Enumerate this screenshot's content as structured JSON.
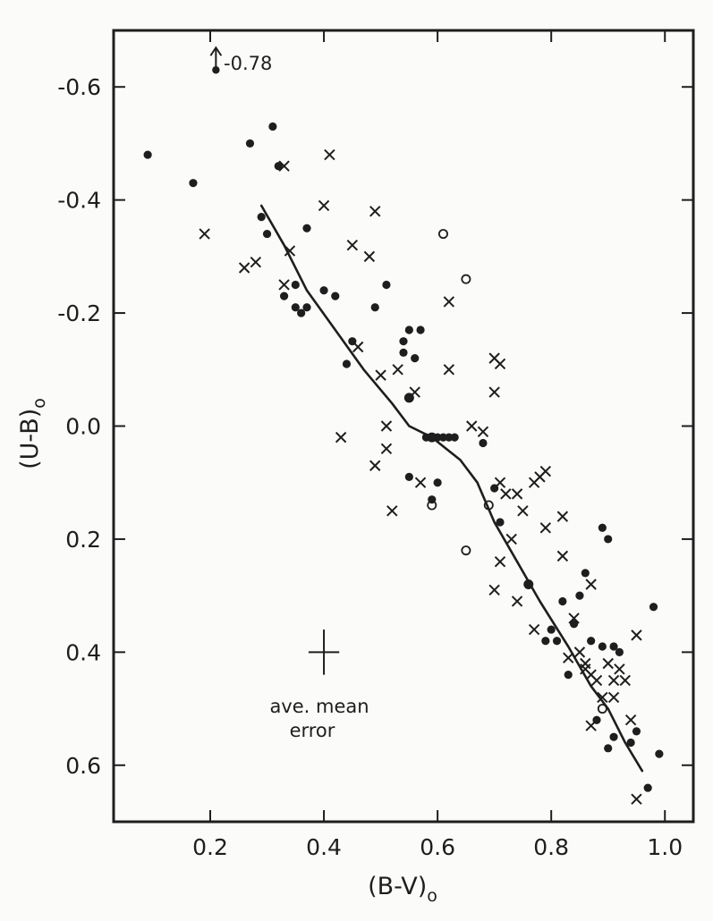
{
  "chart_data": {
    "type": "scatter",
    "title": "",
    "xlabel": "(B-V)",
    "xlabel_subscript": "o",
    "ylabel": "(U-B)",
    "ylabel_subscript": "o",
    "xlim": [
      0.03,
      1.05
    ],
    "ylim": [
      0.7,
      -0.7
    ],
    "y_inverted": true,
    "grid": false,
    "xticks": [
      0.2,
      0.4,
      0.6,
      0.8,
      1.0
    ],
    "xtick_labels": [
      "0.2",
      "0.4",
      "0.6",
      "0.8",
      "1.0"
    ],
    "yticks": [
      -0.6,
      -0.4,
      -0.2,
      0.0,
      0.2,
      0.4,
      0.6
    ],
    "ytick_labels": [
      "-0.6",
      "-0.4",
      "-0.2",
      "0.0",
      "0.2",
      "0.4",
      "0.6"
    ],
    "annotations": {
      "offscale_label": "-0.78",
      "offscale_point": {
        "x": 0.21,
        "y": -0.63
      },
      "error_label_line1": "ave. mean",
      "error_label_line2": "error",
      "error_bar": {
        "x": 0.4,
        "y": 0.4,
        "dx": 0.027,
        "dy": 0.04
      }
    },
    "series": [
      {
        "marker": "filled-circle",
        "points": [
          [
            0.09,
            -0.48
          ],
          [
            0.17,
            -0.43
          ],
          [
            0.27,
            -0.5
          ],
          [
            0.31,
            -0.53
          ],
          [
            0.32,
            -0.46
          ],
          [
            0.29,
            -0.37
          ],
          [
            0.3,
            -0.34
          ],
          [
            0.33,
            -0.23
          ],
          [
            0.35,
            -0.25
          ],
          [
            0.35,
            -0.21
          ],
          [
            0.36,
            -0.2
          ],
          [
            0.37,
            -0.21
          ],
          [
            0.37,
            -0.35
          ],
          [
            0.4,
            -0.24
          ],
          [
            0.42,
            -0.23
          ],
          [
            0.44,
            -0.11
          ],
          [
            0.45,
            -0.15
          ],
          [
            0.49,
            -0.21
          ],
          [
            0.51,
            -0.25
          ],
          [
            0.54,
            -0.15
          ],
          [
            0.54,
            -0.13
          ],
          [
            0.55,
            -0.17
          ],
          [
            0.55,
            -0.05
          ],
          [
            0.56,
            -0.12
          ],
          [
            0.57,
            -0.17
          ],
          [
            0.55,
            0.09
          ],
          [
            0.58,
            0.02
          ],
          [
            0.59,
            0.02
          ],
          [
            0.6,
            0.02
          ],
          [
            0.61,
            0.02
          ],
          [
            0.62,
            0.02
          ],
          [
            0.6,
            0.1
          ],
          [
            0.59,
            0.13
          ],
          [
            0.63,
            0.02
          ],
          [
            0.68,
            0.03
          ],
          [
            0.7,
            0.11
          ],
          [
            0.71,
            0.17
          ],
          [
            0.76,
            0.28
          ],
          [
            0.79,
            0.38
          ],
          [
            0.8,
            0.36
          ],
          [
            0.81,
            0.38
          ],
          [
            0.82,
            0.31
          ],
          [
            0.83,
            0.44
          ],
          [
            0.84,
            0.35
          ],
          [
            0.85,
            0.3
          ],
          [
            0.86,
            0.26
          ],
          [
            0.87,
            0.38
          ],
          [
            0.89,
            0.39
          ],
          [
            0.89,
            0.18
          ],
          [
            0.9,
            0.2
          ],
          [
            0.91,
            0.39
          ],
          [
            0.88,
            0.52
          ],
          [
            0.9,
            0.57
          ],
          [
            0.91,
            0.55
          ],
          [
            0.92,
            0.4
          ],
          [
            0.94,
            0.56
          ],
          [
            0.95,
            0.54
          ],
          [
            0.97,
            0.64
          ],
          [
            0.98,
            0.32
          ],
          [
            0.99,
            0.58
          ]
        ]
      },
      {
        "marker": "cross",
        "points": [
          [
            0.19,
            -0.34
          ],
          [
            0.26,
            -0.28
          ],
          [
            0.28,
            -0.29
          ],
          [
            0.33,
            -0.25
          ],
          [
            0.34,
            -0.31
          ],
          [
            0.33,
            -0.46
          ],
          [
            0.41,
            -0.48
          ],
          [
            0.4,
            -0.39
          ],
          [
            0.45,
            -0.32
          ],
          [
            0.48,
            -0.3
          ],
          [
            0.49,
            -0.38
          ],
          [
            0.46,
            -0.14
          ],
          [
            0.5,
            -0.09
          ],
          [
            0.53,
            -0.1
          ],
          [
            0.56,
            -0.06
          ],
          [
            0.43,
            0.02
          ],
          [
            0.51,
            0.0
          ],
          [
            0.51,
            0.04
          ],
          [
            0.49,
            0.07
          ],
          [
            0.52,
            0.15
          ],
          [
            0.57,
            0.1
          ],
          [
            0.62,
            -0.22
          ],
          [
            0.62,
            -0.1
          ],
          [
            0.66,
            0.0
          ],
          [
            0.68,
            0.01
          ],
          [
            0.7,
            -0.12
          ],
          [
            0.71,
            -0.11
          ],
          [
            0.7,
            -0.06
          ],
          [
            0.71,
            0.1
          ],
          [
            0.72,
            0.12
          ],
          [
            0.74,
            0.12
          ],
          [
            0.75,
            0.15
          ],
          [
            0.77,
            0.1
          ],
          [
            0.78,
            0.09
          ],
          [
            0.79,
            0.08
          ],
          [
            0.79,
            0.18
          ],
          [
            0.71,
            0.24
          ],
          [
            0.7,
            0.29
          ],
          [
            0.73,
            0.2
          ],
          [
            0.74,
            0.31
          ],
          [
            0.77,
            0.36
          ],
          [
            0.82,
            0.16
          ],
          [
            0.82,
            0.23
          ],
          [
            0.84,
            0.34
          ],
          [
            0.85,
            0.4
          ],
          [
            0.83,
            0.41
          ],
          [
            0.86,
            0.42
          ],
          [
            0.87,
            0.44
          ],
          [
            0.88,
            0.45
          ],
          [
            0.86,
            0.43
          ],
          [
            0.87,
            0.28
          ],
          [
            0.9,
            0.42
          ],
          [
            0.91,
            0.45
          ],
          [
            0.92,
            0.43
          ],
          [
            0.93,
            0.45
          ],
          [
            0.89,
            0.48
          ],
          [
            0.91,
            0.48
          ],
          [
            0.87,
            0.53
          ],
          [
            0.94,
            0.52
          ],
          [
            0.95,
            0.37
          ],
          [
            0.95,
            0.66
          ]
        ]
      },
      {
        "marker": "open-circle",
        "points": [
          [
            0.61,
            -0.34
          ],
          [
            0.65,
            -0.26
          ],
          [
            0.55,
            -0.05
          ],
          [
            0.59,
            0.02
          ],
          [
            0.65,
            0.22
          ],
          [
            0.69,
            0.14
          ],
          [
            0.76,
            0.28
          ],
          [
            0.89,
            0.5
          ],
          [
            0.59,
            0.14
          ]
        ]
      },
      {
        "marker": "line",
        "points": [
          [
            0.29,
            -0.39
          ],
          [
            0.33,
            -0.32
          ],
          [
            0.37,
            -0.24
          ],
          [
            0.42,
            -0.17
          ],
          [
            0.47,
            -0.1
          ],
          [
            0.52,
            -0.04
          ],
          [
            0.55,
            0.0
          ],
          [
            0.59,
            0.02
          ],
          [
            0.64,
            0.06
          ],
          [
            0.67,
            0.1
          ],
          [
            0.7,
            0.17
          ],
          [
            0.74,
            0.24
          ],
          [
            0.78,
            0.31
          ],
          [
            0.83,
            0.39
          ],
          [
            0.87,
            0.46
          ],
          [
            0.9,
            0.5
          ],
          [
            0.93,
            0.56
          ],
          [
            0.96,
            0.61
          ]
        ]
      }
    ]
  }
}
